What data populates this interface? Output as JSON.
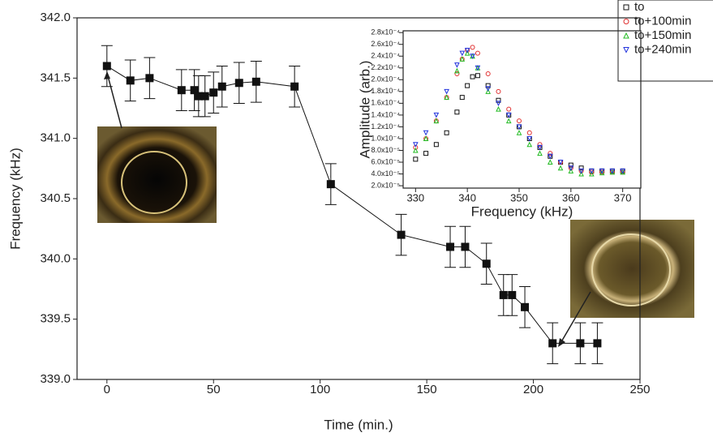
{
  "chart_data": [
    {
      "type": "line",
      "x_label": "Time (min.)",
      "y_label": "Frequency (kHz)",
      "color": "#111111",
      "x": [
        0,
        11,
        20,
        35,
        41,
        43,
        46,
        50,
        54,
        62,
        70,
        88,
        105,
        138,
        161,
        168,
        178,
        186,
        190,
        196,
        209,
        222,
        230
      ],
      "values": [
        341.6,
        341.48,
        341.5,
        341.4,
        341.4,
        341.35,
        341.35,
        341.38,
        341.43,
        341.46,
        341.47,
        341.43,
        340.62,
        340.2,
        340.1,
        340.1,
        339.96,
        339.7,
        339.7,
        339.6,
        339.3,
        339.3,
        339.3
      ],
      "errors": [
        0.17,
        0.17,
        0.17,
        0.17,
        0.17,
        0.17,
        0.17,
        0.17,
        0.17,
        0.17,
        0.17,
        0.17,
        0.17,
        0.17,
        0.17,
        0.17,
        0.17,
        0.17,
        0.17,
        0.17,
        0.17,
        0.17,
        0.17
      ],
      "xlim": [
        -14,
        250
      ],
      "ylim": [
        339.0,
        342.0
      ],
      "xticks": [
        0,
        50,
        100,
        150,
        200,
        250
      ],
      "yticks": [
        {
          "value": 339,
          "label": "339.0"
        },
        {
          "value": 339.5,
          "label": "339.5"
        },
        {
          "value": 340,
          "label": "340.0"
        },
        {
          "value": 340.5,
          "label": "340.5"
        },
        {
          "value": 341,
          "label": "341.0"
        },
        {
          "value": 341.5,
          "label": "341.5"
        },
        {
          "value": 342,
          "label": "342.0"
        }
      ]
    },
    {
      "type": "scatter",
      "x_label": "Frequency (kHz)",
      "y_label": "Amplitude (arb.)",
      "x": [
        330,
        332,
        334,
        336,
        338,
        339,
        340,
        341,
        342,
        344,
        346,
        348,
        350,
        352,
        354,
        356,
        358,
        360,
        362,
        364,
        366,
        368,
        370
      ],
      "series": [
        {
          "name": "to",
          "color": "#111111",
          "marker": "square",
          "values": [
            6.5e-05,
            7.5e-05,
            9e-05,
            0.00011,
            0.000145,
            0.00017,
            0.00019,
            0.000205,
            0.000207,
            0.00019,
            0.000165,
            0.00014,
            0.00012,
            0.0001,
            8.5e-05,
            7e-05,
            6e-05,
            5.5e-05,
            5e-05,
            4.5e-05,
            4.5e-05,
            4.5e-05,
            4.5e-05
          ]
        },
        {
          "name": "to+100min",
          "color": "#e03030",
          "marker": "circle",
          "values": [
            8.5e-05,
            0.0001,
            0.00013,
            0.00017,
            0.00021,
            0.000235,
            0.00025,
            0.000255,
            0.000245,
            0.00021,
            0.00018,
            0.00015,
            0.00013,
            0.00011,
            9e-05,
            7.5e-05,
            6e-05,
            5e-05,
            4.5e-05,
            4.3e-05,
            4.3e-05,
            4.3e-05,
            4.3e-05
          ]
        },
        {
          "name": "to+150min",
          "color": "#22bb22",
          "marker": "triangle",
          "values": [
            8e-05,
            0.0001,
            0.00013,
            0.00017,
            0.000215,
            0.000235,
            0.000245,
            0.00024,
            0.00022,
            0.00018,
            0.00015,
            0.00013,
            0.00011,
            9e-05,
            7.5e-05,
            6e-05,
            5e-05,
            4.5e-05,
            4e-05,
            4e-05,
            4.2e-05,
            4.3e-05,
            4.3e-05
          ]
        },
        {
          "name": "to+240min",
          "color": "#2233dd",
          "marker": "triangle-down",
          "values": [
            9e-05,
            0.00011,
            0.00014,
            0.00018,
            0.000225,
            0.000245,
            0.00025,
            0.00024,
            0.00022,
            0.000185,
            0.00016,
            0.00014,
            0.00012,
            0.0001,
            8.5e-05,
            7e-05,
            6e-05,
            5e-05,
            4.5e-05,
            4.5e-05,
            4.5e-05,
            4.5e-05,
            4.5e-05
          ]
        }
      ],
      "xlim": [
        327.6,
        373.5
      ],
      "ylim": [
        1.6e-05,
        0.000283
      ],
      "xticks": [
        330,
        340,
        350,
        360,
        370
      ],
      "yticks": [
        {
          "value": 2e-05,
          "label": "2.0x10⁻⁵"
        },
        {
          "value": 4e-05,
          "label": "4.0x10⁻⁵"
        },
        {
          "value": 6e-05,
          "label": "6.0x10⁻⁵"
        },
        {
          "value": 8e-05,
          "label": "8.0x10⁻⁵"
        },
        {
          "value": 0.0001,
          "label": "1.0x10⁻⁴"
        },
        {
          "value": 0.00012,
          "label": "1.2x10⁻⁴"
        },
        {
          "value": 0.00014,
          "label": "1.4x10⁻⁴"
        },
        {
          "value": 0.00016,
          "label": "1.6x10⁻⁴"
        },
        {
          "value": 0.00018,
          "label": "1.8x10⁻⁴"
        },
        {
          "value": 0.0002,
          "label": "2.0x10⁻⁴"
        },
        {
          "value": 0.00022,
          "label": "2.2x10⁻⁴"
        },
        {
          "value": 0.00024,
          "label": "2.4x10⁻⁴"
        },
        {
          "value": 0.00026,
          "label": "2.6x10⁻⁴"
        },
        {
          "value": 0.00028,
          "label": "2.8x10⁻⁴"
        }
      ]
    }
  ]
}
